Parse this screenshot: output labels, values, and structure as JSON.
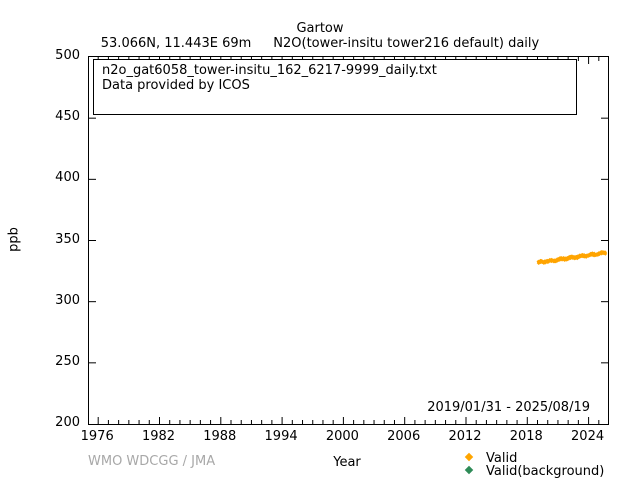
{
  "title": {
    "station": "Gartow",
    "line2_left": "53.066N, 11.443E 69m",
    "line2_right": "N2O(tower-insitu tower216 default) daily"
  },
  "info_box": {
    "line1": "n2o_gat6058_tower-insitu_162_6217-9999_daily.txt",
    "line2": "Data provided by ICOS"
  },
  "axes": {
    "ylabel": "ppb",
    "xlabel": "Year",
    "ylim": [
      200,
      500
    ],
    "xlim": [
      1975.1,
      2025.9
    ],
    "yticks": [
      200,
      250,
      300,
      350,
      400,
      450,
      500
    ],
    "xticks": [
      1976,
      1982,
      1988,
      1994,
      2000,
      2006,
      2012,
      2018,
      2024
    ],
    "x_minor_step_years": 1,
    "grid": false
  },
  "annotations": {
    "date_range": "2019/01/31 - 2025/08/19",
    "credit": "WMO WDCGG / JMA"
  },
  "legend": {
    "position": "below-plot-right",
    "items": [
      {
        "label": "Valid",
        "color": "#ffa500"
      },
      {
        "label": "Valid(background)",
        "color": "#2e8b57"
      }
    ]
  },
  "chart_data": {
    "type": "scatter",
    "title": "Gartow N2O(tower-insitu tower216 default) daily",
    "xlabel": "Year",
    "ylabel": "ppb",
    "xlim": [
      1975.1,
      2025.9
    ],
    "ylim": [
      200,
      500
    ],
    "legend_position": "bottom-right-outside",
    "series": [
      {
        "name": "Valid",
        "color": "#ffa500",
        "marker": "diamond",
        "x_start_decimal_year": 2019.083,
        "x_step_years": 0.083333,
        "values": [
          332.2,
          332.5,
          332.7,
          332.7,
          332.6,
          332.5,
          332.4,
          332.3,
          332.4,
          332.5,
          332.8,
          333.1,
          333.4,
          333.7,
          333.9,
          333.9,
          333.9,
          333.7,
          333.6,
          333.5,
          333.6,
          333.7,
          334.0,
          334.3,
          334.7,
          334.9,
          335.1,
          335.1,
          335.1,
          335.0,
          334.8,
          334.8,
          334.8,
          335.0,
          335.2,
          335.6,
          335.9,
          336.2,
          336.3,
          336.4,
          336.3,
          336.2,
          336.0,
          336.0,
          336.0,
          336.2,
          336.5,
          336.8,
          337.1,
          337.4,
          337.5,
          337.6,
          337.5,
          337.4,
          337.3,
          337.2,
          337.2,
          337.4,
          337.7,
          338.0,
          338.3,
          338.6,
          338.8,
          338.8,
          338.7,
          338.6,
          338.5,
          338.4,
          338.5,
          338.6,
          338.9,
          339.2,
          339.5,
          339.8,
          340.0,
          340.0,
          340.0,
          339.8,
          339.7
        ]
      },
      {
        "name": "Valid(background)",
        "color": "#2e8b57",
        "marker": "diamond",
        "values": []
      }
    ]
  }
}
